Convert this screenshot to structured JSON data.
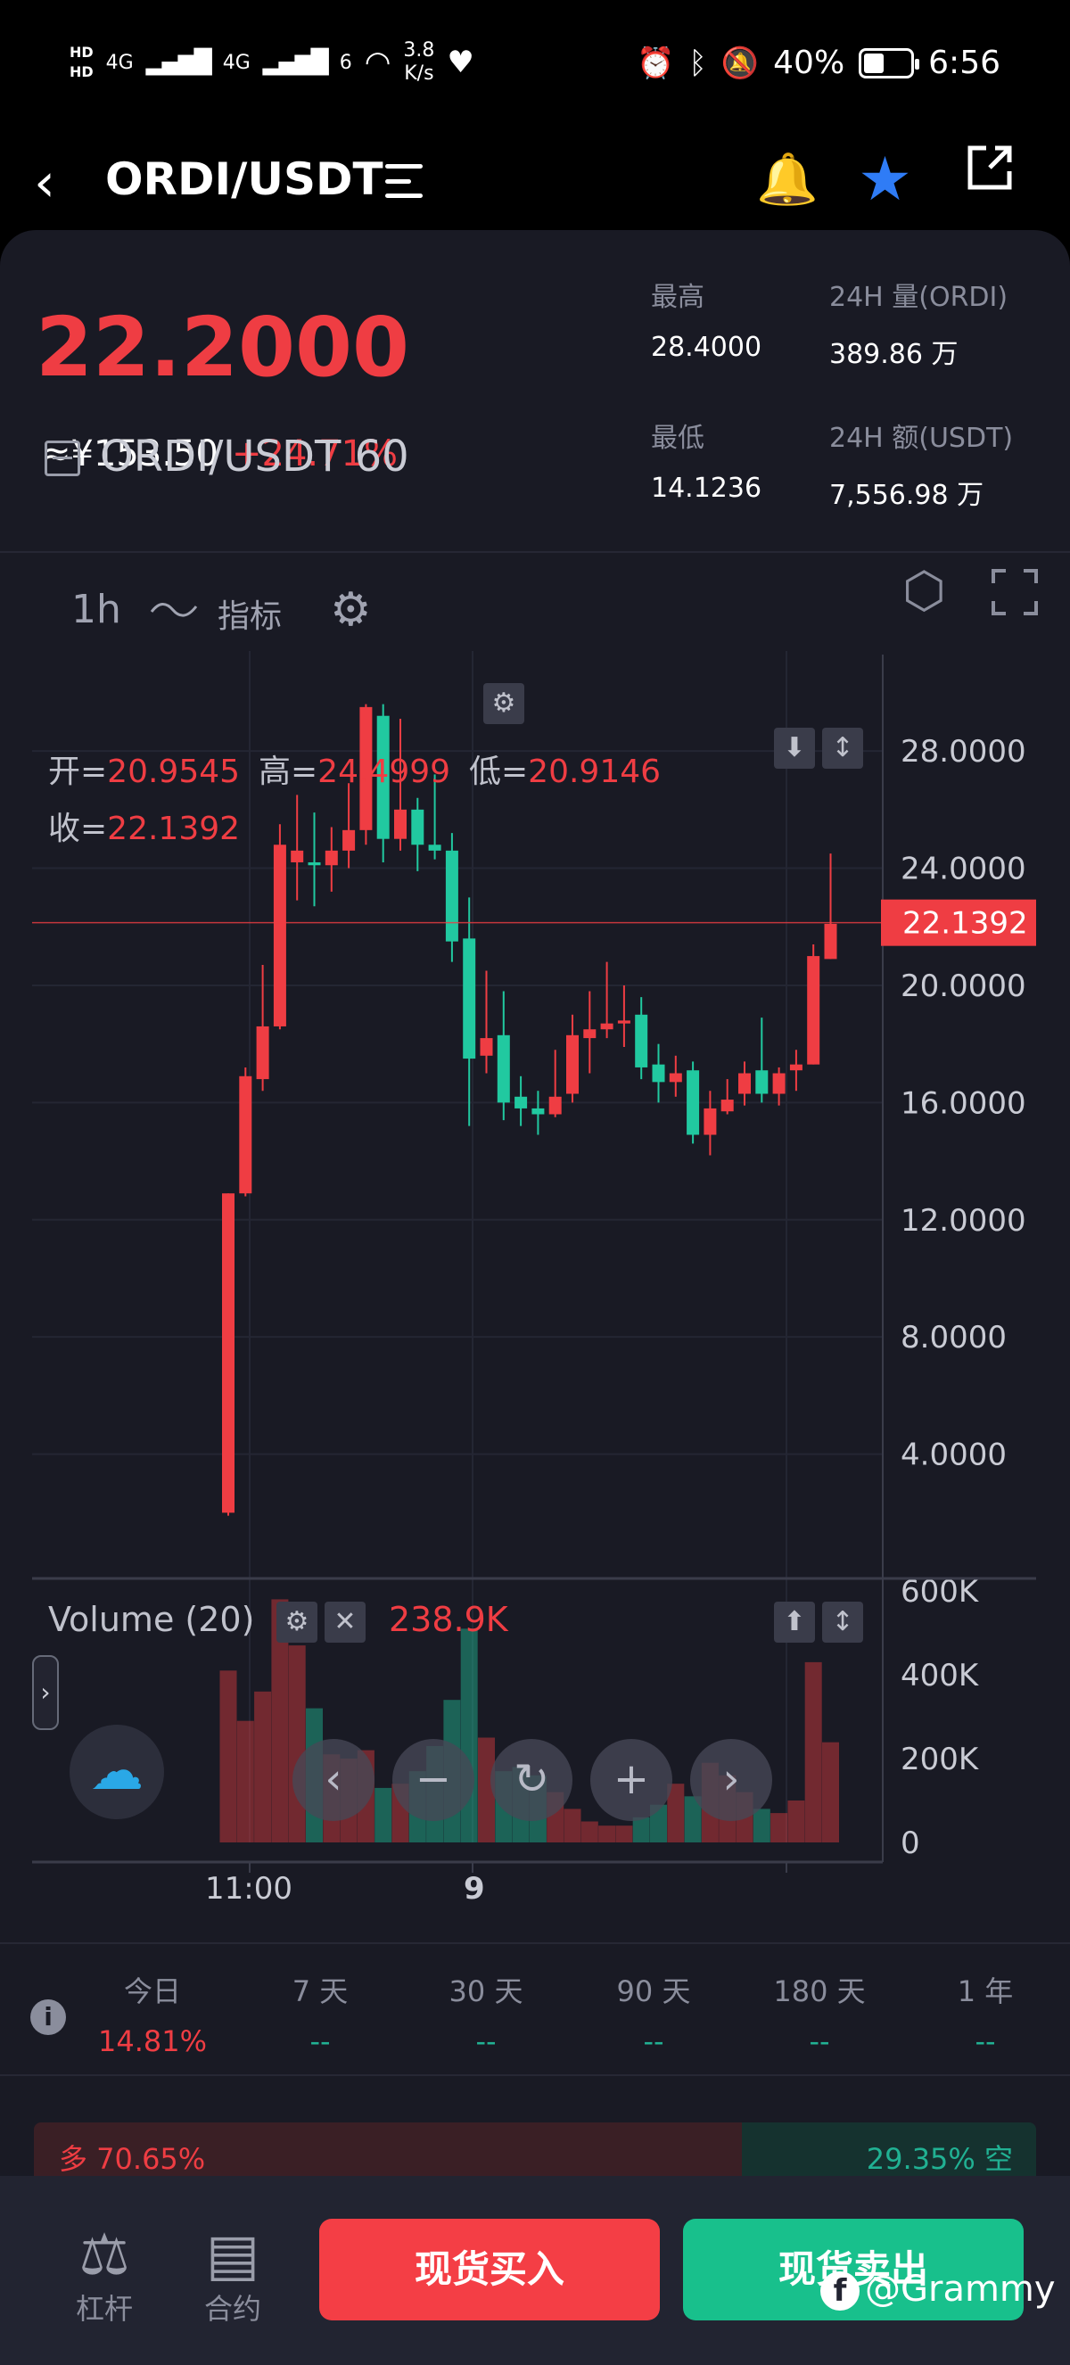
{
  "status_bar": {
    "hd1": "HD",
    "hd2": "HD",
    "net1": "4G",
    "net2": "4G",
    "net3": "6",
    "speed_value": "3.8",
    "speed_unit": "K/s",
    "battery": "40%",
    "time": "6:56"
  },
  "nav": {
    "title": "ORDI/USDT"
  },
  "ticker": {
    "price": "22.2000",
    "cny": "≈¥153.50",
    "change": "+24.71%",
    "high_label": "最高",
    "high": "28.4000",
    "low_label": "最低",
    "low": "14.1236",
    "vol_label": "24H 量(ORDI)",
    "vol": "389.86 万",
    "amount_label": "24H 额(USDT)",
    "amount": "7,556.98 万"
  },
  "toolbar": {
    "interval": "1h",
    "indicator_label": "指标"
  },
  "chart_data": {
    "type": "candlestick",
    "title": "ORDI/USDT",
    "interval_label": "60",
    "ohlc_labels": {
      "open": "开=",
      "high": "高=",
      "low": "低=",
      "close": "收="
    },
    "ohlc_values": {
      "open": "20.9545",
      "high": "24.4999",
      "low": "20.9146",
      "close": "22.1392"
    },
    "y_ticks": [
      "28.0000",
      "24.0000",
      "20.0000",
      "16.0000",
      "12.0000",
      "8.0000",
      "4.0000"
    ],
    "y_tick_values": [
      28,
      24,
      20,
      16,
      12,
      8,
      4
    ],
    "ylim": [
      0,
      30.5
    ],
    "current_price": 22.1392,
    "current_price_label": "22.1392",
    "x_labels": [
      "11:00",
      "9"
    ],
    "candles": [
      [
        2,
        12.9,
        12.9,
        1.9
      ],
      [
        12.9,
        16.9,
        17.2,
        12.8
      ],
      [
        16.8,
        18.6,
        20.7,
        16.4
      ],
      [
        18.6,
        24.8,
        25.5,
        18.5
      ],
      [
        24.2,
        24.6,
        26.5,
        22.9
      ],
      [
        24.2,
        24.1,
        25.9,
        22.7
      ],
      [
        24.1,
        24.6,
        25.4,
        23.2
      ],
      [
        24.6,
        25.3,
        26.9,
        24.0
      ],
      [
        25.3,
        29.5,
        29.6,
        24.8
      ],
      [
        29.2,
        25.0,
        29.6,
        24.2
      ],
      [
        25.0,
        26.0,
        29.1,
        24.6
      ],
      [
        26.0,
        24.8,
        26.4,
        23.9
      ],
      [
        24.8,
        24.6,
        27.2,
        24.3
      ],
      [
        24.6,
        21.5,
        25.2,
        20.8
      ],
      [
        21.6,
        17.5,
        23.0,
        15.2
      ],
      [
        17.6,
        18.2,
        20.5,
        17.0
      ],
      [
        18.3,
        16.0,
        19.8,
        15.4
      ],
      [
        16.2,
        15.8,
        16.9,
        15.2
      ],
      [
        15.8,
        15.6,
        16.4,
        14.9
      ],
      [
        15.6,
        16.2,
        17.8,
        15.5
      ],
      [
        16.3,
        18.3,
        19.0,
        16.0
      ],
      [
        18.2,
        18.5,
        19.8,
        17.0
      ],
      [
        18.5,
        18.7,
        20.8,
        18.2
      ],
      [
        18.7,
        18.8,
        20.0,
        17.9
      ],
      [
        19.0,
        17.2,
        19.6,
        16.8
      ],
      [
        17.3,
        16.7,
        18.0,
        16.0
      ],
      [
        16.7,
        17.0,
        17.6,
        16.2
      ],
      [
        17.1,
        14.9,
        17.4,
        14.6
      ],
      [
        14.9,
        15.8,
        16.4,
        14.2
      ],
      [
        15.7,
        16.1,
        16.8,
        15.6
      ],
      [
        16.3,
        17.0,
        17.4,
        15.9
      ],
      [
        17.1,
        16.3,
        18.9,
        16.0
      ],
      [
        16.3,
        17.0,
        17.2,
        15.9
      ],
      [
        17.1,
        17.3,
        17.8,
        16.4
      ],
      [
        17.3,
        21.0,
        21.4,
        17.3
      ],
      [
        20.9,
        22.1,
        24.5,
        20.9
      ]
    ]
  },
  "volume": {
    "title": "Volume (20)",
    "value": "238.9K",
    "y_ticks": [
      "600K",
      "400K",
      "200K",
      "0"
    ],
    "y_tick_values": [
      600,
      400,
      200,
      0
    ],
    "ylim": [
      0,
      600
    ],
    "values": [
      410,
      290,
      360,
      580,
      470,
      320,
      210,
      200,
      220,
      130,
      140,
      170,
      230,
      340,
      510,
      250,
      170,
      180,
      160,
      120,
      80,
      50,
      40,
      40,
      60,
      90,
      140,
      110,
      190,
      160,
      120,
      80,
      70,
      100,
      430,
      239
    ]
  },
  "periods": [
    {
      "label": "今日",
      "value": "14.81%"
    },
    {
      "label": "7 天",
      "value": "--"
    },
    {
      "label": "30 天",
      "value": "--"
    },
    {
      "label": "90 天",
      "value": "--"
    },
    {
      "label": "180 天",
      "value": "--"
    },
    {
      "label": "1 年",
      "value": "--"
    }
  ],
  "ratio": {
    "long_label": "多 70.65%",
    "short_label": "29.35% 空",
    "long_pct": 70.65,
    "short_pct": 29.35
  },
  "bottom": {
    "leverage_label": "杠杆",
    "contract_label": "合约",
    "buy_label": "现货买入",
    "sell_label": "现货卖出",
    "watermark": "@Grammy"
  },
  "colors": {
    "up": "#ef3d43",
    "down": "#21c9a0",
    "accent": "#2f7cf6"
  }
}
